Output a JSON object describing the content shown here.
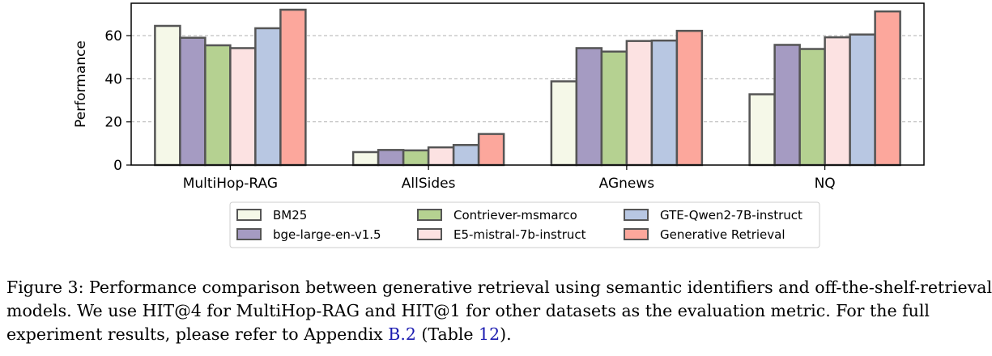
{
  "chart_data": {
    "type": "bar",
    "title": "",
    "xlabel": "",
    "ylabel": "Performance",
    "ylim": [
      0,
      75
    ],
    "yticks": [
      0,
      20,
      40,
      60
    ],
    "grid": "horizontal dashed",
    "legend_position": "bottom-center",
    "categories": [
      "MultiHop-RAG",
      "AllSides",
      "AGnews",
      "NQ"
    ],
    "series": [
      {
        "name": "BM25",
        "color": "#f5f8e8",
        "values": [
          64.5,
          6.0,
          38.8,
          32.8
        ]
      },
      {
        "name": "bge-large-en-v1.5",
        "color": "#a59bc2",
        "values": [
          59.0,
          7.0,
          54.2,
          55.7
        ]
      },
      {
        "name": "Contriever-msmarco",
        "color": "#b5d191",
        "values": [
          55.5,
          6.8,
          52.6,
          53.8
        ]
      },
      {
        "name": "E5-mistral-7b-instruct",
        "color": "#fce2e2",
        "values": [
          54.2,
          8.2,
          57.5,
          59.2
        ]
      },
      {
        "name": "GTE-Qwen2-7B-instruct",
        "color": "#b8c7e2",
        "values": [
          63.4,
          9.3,
          57.7,
          60.5
        ]
      },
      {
        "name": "Generative Retrieval",
        "color": "#fca79c",
        "values": [
          72.0,
          14.4,
          62.2,
          71.2
        ]
      }
    ]
  },
  "caption": {
    "line1": "Figure 3: Performance comparison between generative retrieval using semantic identifiers and off-the-shelf-retrieval",
    "line2": "models. We use HIT@4 for MultiHop-RAG and HIT@1 for other datasets as the evaluation metric. For the full",
    "line3_pre": "experiment results, please refer to Appendix ",
    "line3_ref1": "B.2",
    "line3_mid": " (Table ",
    "line3_ref2": "12",
    "line3_post": ")."
  }
}
